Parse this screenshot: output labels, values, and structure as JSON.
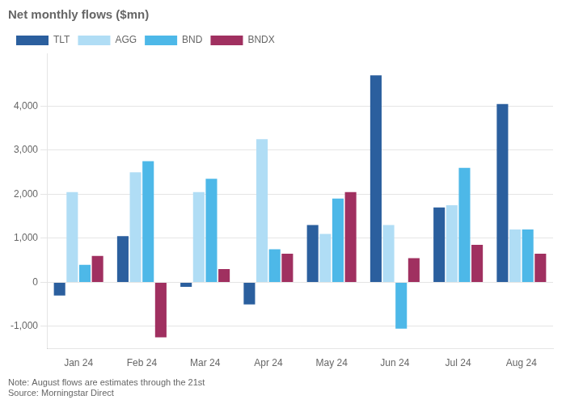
{
  "chart_data": {
    "type": "bar",
    "title": "Net monthly flows ($mn)",
    "categories": [
      "Jan 24",
      "Feb 24",
      "Mar 24",
      "Apr 24",
      "May 24",
      "Jun 24",
      "Jul 24",
      "Aug 24"
    ],
    "series": [
      {
        "name": "TLT",
        "color": "#2b5f9e",
        "values": [
          -300,
          1050,
          -100,
          -500,
          1300,
          4700,
          1700,
          4050
        ]
      },
      {
        "name": "AGG",
        "color": "#b0ddf5",
        "values": [
          2050,
          2500,
          2050,
          3250,
          1100,
          1300,
          1750,
          1200
        ]
      },
      {
        "name": "BND",
        "color": "#4db8e8",
        "values": [
          400,
          2750,
          2350,
          750,
          1900,
          -1050,
          2600,
          1200
        ]
      },
      {
        "name": "BNDX",
        "color": "#a03060",
        "values": [
          600,
          -1250,
          300,
          650,
          2050,
          550,
          850,
          650
        ]
      }
    ],
    "ylim": [
      -1500,
      5200
    ],
    "yticks": [
      {
        "value": -1000,
        "label": "-1,000"
      },
      0,
      {
        "value": 1000,
        "label": "1,000"
      },
      {
        "value": 2000,
        "label": "2,000"
      },
      {
        "value": 3000,
        "label": "3,000"
      },
      {
        "value": 4000,
        "label": "4,000"
      }
    ],
    "grid": true,
    "legend": "top",
    "annotations": [
      "Note: August flows are estimates through the 21st\nSource: Morningstar Direct"
    ]
  }
}
